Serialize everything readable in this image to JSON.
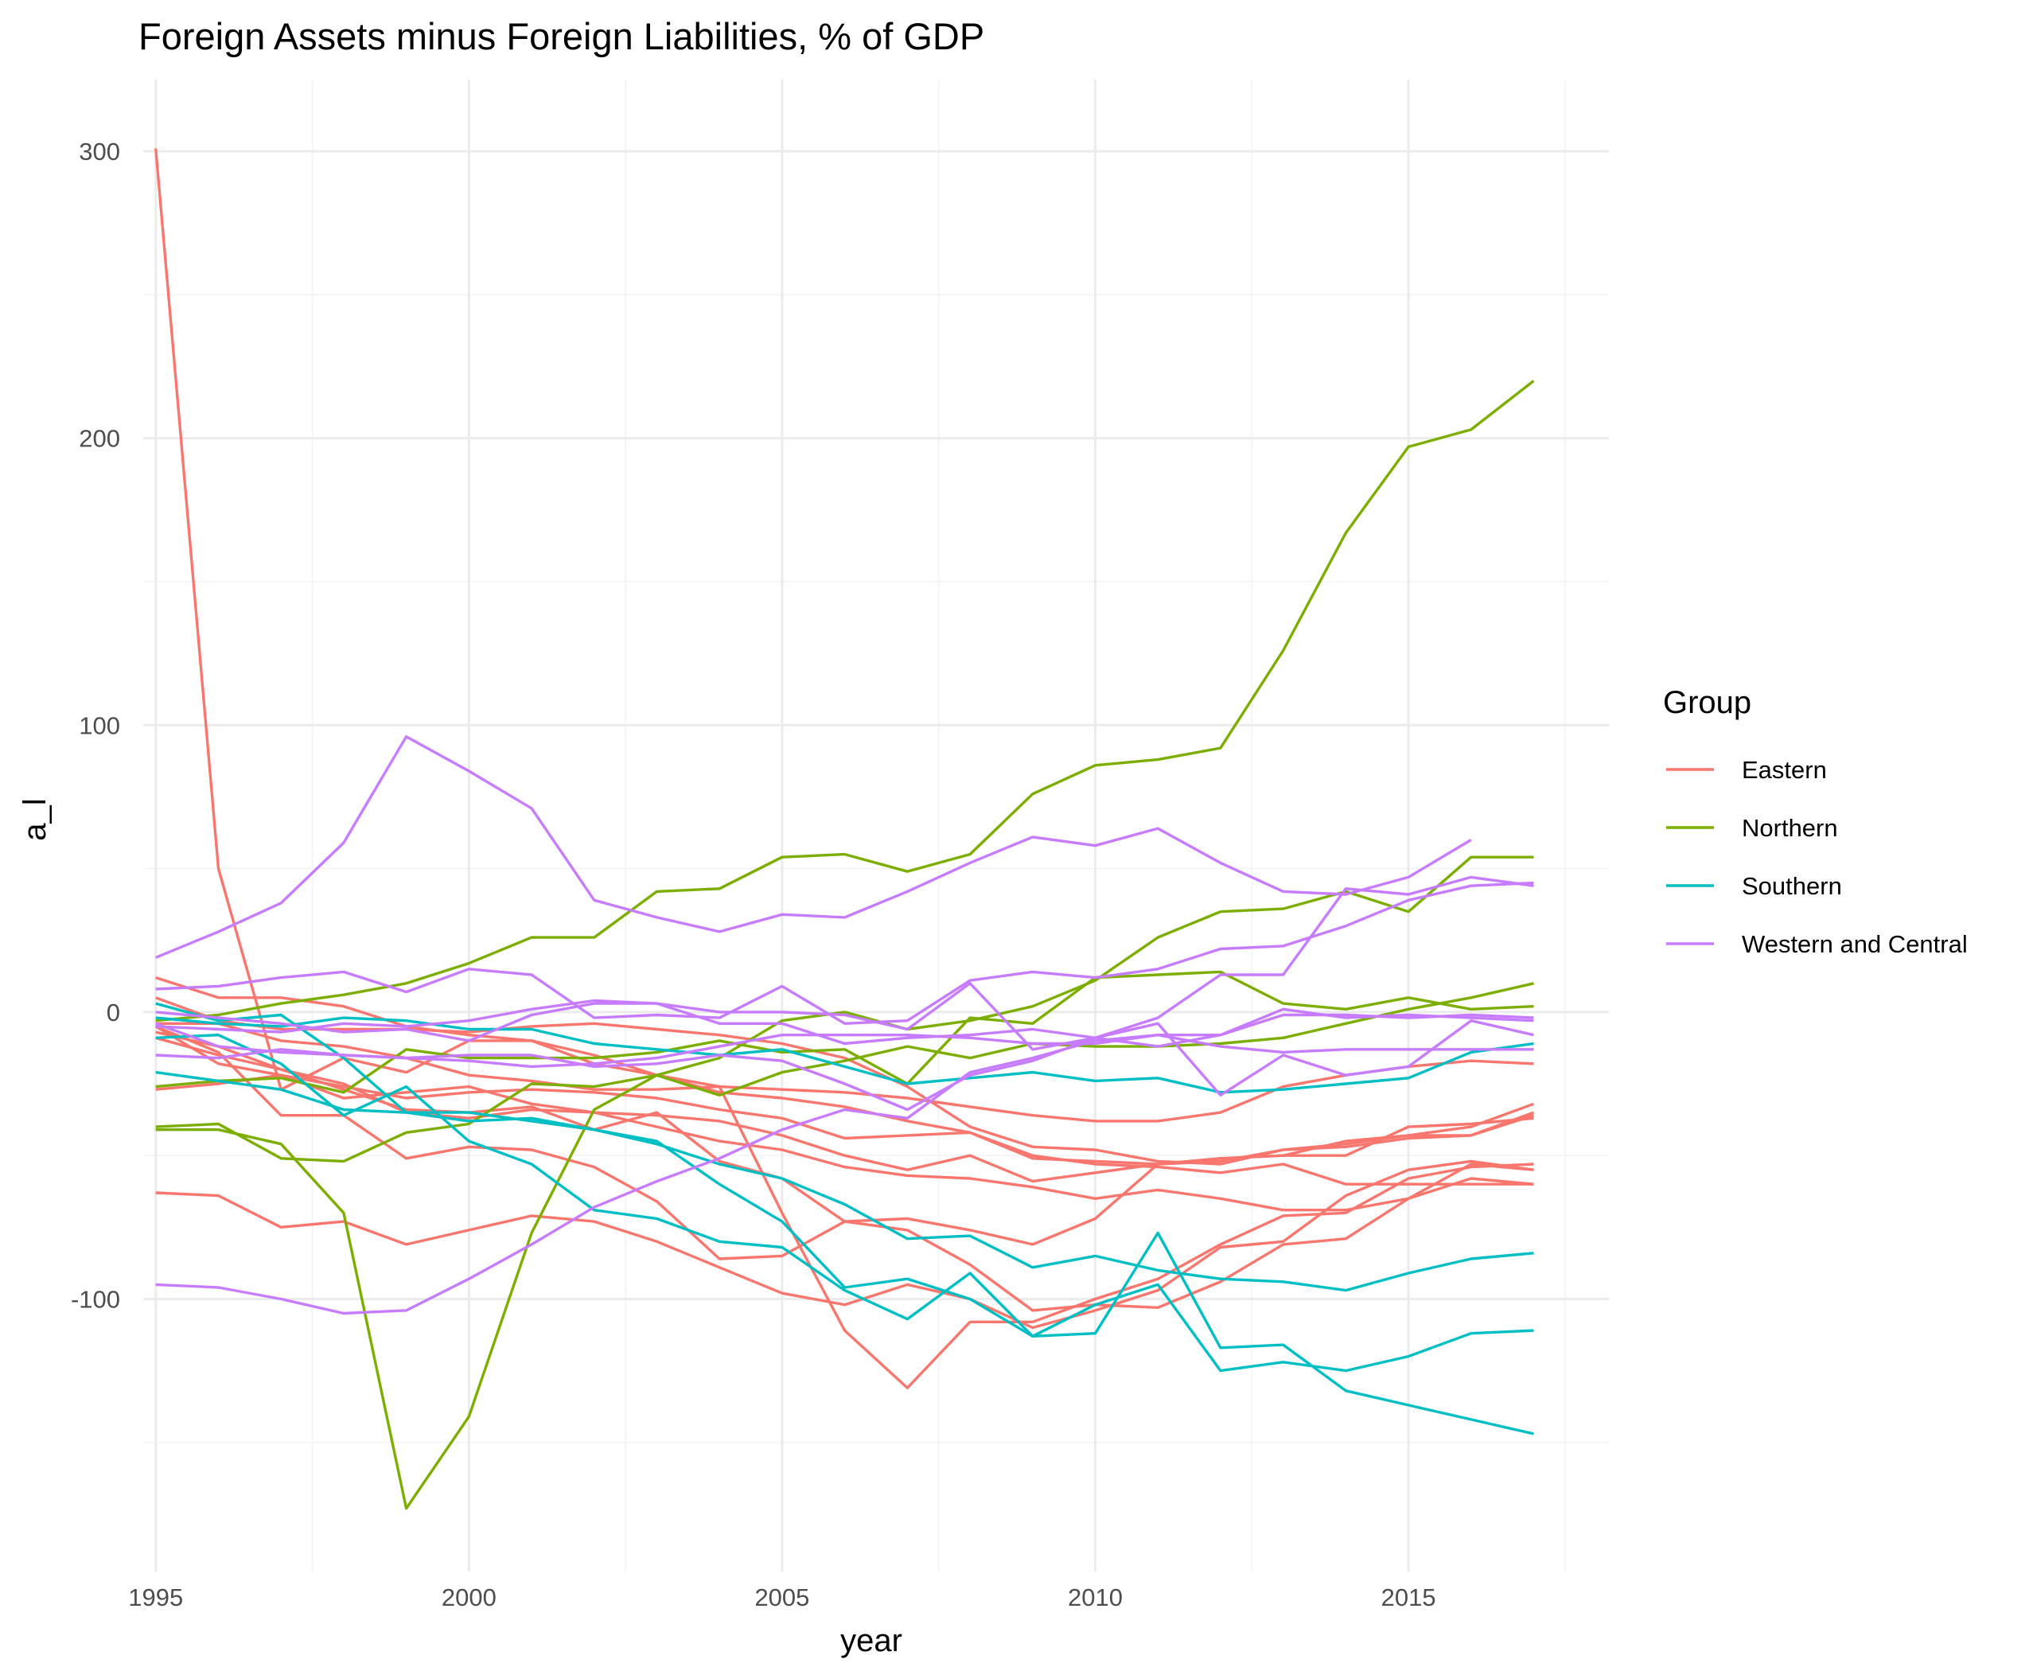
{
  "chart_data": {
    "type": "line",
    "title": "Foreign Assets minus Foreign Liabilities, % of GDP",
    "xlabel": "year",
    "ylabel": "a_l",
    "xlim": [
      1994.8,
      2018.2
    ],
    "ylim": [
      -195,
      325
    ],
    "x_ticks": [
      1995,
      2000,
      2005,
      2010,
      2015
    ],
    "x_tick_labels": [
      "1995",
      "2000",
      "2005",
      "2010",
      "2015"
    ],
    "y_ticks": [
      300,
      200,
      100,
      0,
      -100
    ],
    "y_tick_labels": [
      "300",
      "200",
      "100",
      "0",
      "-100"
    ],
    "legend": {
      "title": "Group",
      "placement": "right",
      "entries": [
        {
          "name": "Eastern",
          "color": "#F8766D"
        },
        {
          "name": "Northern",
          "color": "#7CAE00"
        },
        {
          "name": "Southern",
          "color": "#00BFC4"
        },
        {
          "name": "Western and Central",
          "color": "#C77CFF"
        }
      ]
    },
    "x": [
      1995,
      1996,
      1997,
      1998,
      1999,
      2000,
      2001,
      2002,
      2003,
      2004,
      2005,
      2006,
      2007,
      2008,
      2009,
      2010,
      2011,
      2012,
      2013,
      2014,
      2015,
      2016,
      2017
    ],
    "series": [
      {
        "group": "Eastern",
        "values": [
          301,
          50,
          -27,
          -16,
          -21,
          -10,
          -10,
          -15,
          -22,
          -26,
          -70,
          -111,
          -131,
          -108,
          -108,
          -100,
          -93,
          -81,
          -71,
          -70,
          -58,
          -54,
          -53
        ]
      },
      {
        "group": "Eastern",
        "values": [
          12,
          5,
          5,
          2,
          -5,
          -8,
          -10,
          -18,
          -22,
          -28,
          -30,
          -33,
          -38,
          -42,
          -50,
          -53,
          -54,
          -56,
          -53,
          -60,
          -60,
          -60,
          -60
        ]
      },
      {
        "group": "Eastern",
        "values": [
          5,
          -3,
          -6,
          -6,
          -6,
          -7,
          -5,
          -4,
          -6,
          -8,
          -11,
          -16,
          -26,
          -40,
          -47,
          -48,
          -52,
          -53,
          -48,
          -47,
          -44,
          -43,
          -36
        ]
      },
      {
        "group": "Eastern",
        "values": [
          -5,
          -14,
          -36,
          -36,
          -51,
          -47,
          -48,
          -54,
          -66,
          -86,
          -85,
          -73,
          -72,
          -76,
          -81,
          -72,
          -53,
          -51,
          -50,
          -45,
          -43,
          -40,
          -32
        ]
      },
      {
        "group": "Eastern",
        "values": [
          -63,
          -64,
          -75,
          -73,
          -81,
          -76,
          -71,
          -73,
          -80,
          -89,
          -98,
          -102,
          -95,
          -100,
          -110,
          -104,
          -97,
          -82,
          -80,
          -64,
          -55,
          -52,
          -55
        ]
      },
      {
        "group": "Eastern",
        "values": [
          -27,
          -25,
          -22,
          -26,
          -30,
          -28,
          -27,
          -28,
          -30,
          -34,
          -37,
          -44,
          -43,
          -42,
          -51,
          -52,
          -53,
          -51,
          -50,
          -50,
          -40,
          -39,
          -37
        ]
      },
      {
        "group": "Eastern",
        "values": [
          -9,
          -15,
          -20,
          -25,
          -35,
          -37,
          -34,
          -35,
          -36,
          -38,
          -43,
          -50,
          -55,
          -50,
          -59,
          -56,
          -53,
          -52,
          -48,
          -46,
          -43,
          -43,
          -35
        ]
      },
      {
        "group": "Eastern",
        "values": [
          -5,
          -18,
          -22,
          -30,
          -28,
          -26,
          -32,
          -35,
          -40,
          -45,
          -48,
          -54,
          -57,
          -58,
          -61,
          -65,
          -62,
          -65,
          -69,
          -69,
          -65,
          -58,
          -60
        ]
      },
      {
        "group": "Eastern",
        "values": [
          -7,
          -12,
          -20,
          -27,
          -34,
          -35,
          -33,
          -41,
          -35,
          -52,
          -58,
          -73,
          -76,
          -88,
          -104,
          -102,
          -103,
          -94,
          -81,
          -79,
          -65,
          -53,
          -55
        ]
      },
      {
        "group": "Eastern",
        "values": [
          -4,
          -4,
          -10,
          -12,
          -16,
          -22,
          -24,
          -27,
          -27,
          -26,
          -27,
          -28,
          -30,
          -33,
          -36,
          -38,
          -38,
          -35,
          -26,
          -22,
          -19,
          -17,
          -18
        ]
      },
      {
        "group": "Northern",
        "values": [
          -40,
          -39,
          -51,
          -52,
          -42,
          -39,
          -25,
          -26,
          -22,
          -29,
          -21,
          -17,
          -12,
          -16,
          -11,
          -12,
          -12,
          -11,
          -9,
          -4,
          1,
          5,
          10
        ]
      },
      {
        "group": "Northern",
        "values": [
          -41,
          -41,
          -46,
          -70,
          -173,
          -141,
          -77,
          -34,
          -22,
          -16,
          -3,
          0,
          -6,
          -3,
          2,
          11,
          26,
          35,
          36,
          42,
          35,
          54,
          54
        ]
      },
      {
        "group": "Northern",
        "values": [
          -26,
          -24,
          -23,
          -28,
          -13,
          -16,
          -16,
          -16,
          -14,
          -10,
          -14,
          -13,
          -25,
          -2,
          -4,
          12,
          13,
          14,
          3,
          1,
          5,
          1,
          2
        ]
      },
      {
        "group": "Northern",
        "values": [
          -3,
          -1,
          3,
          6,
          10,
          17,
          26,
          26,
          42,
          43,
          54,
          55,
          49,
          55,
          76,
          86,
          88,
          92,
          126,
          167,
          197,
          203,
          220
        ]
      },
      {
        "group": "Southern",
        "values": [
          -9,
          -8,
          -18,
          -36,
          -26,
          -45,
          -53,
          -69,
          -72,
          -80,
          -82,
          -97,
          -107,
          -91,
          -113,
          -112,
          -77,
          -117,
          -116,
          -132,
          -137,
          -142,
          -147
        ]
      },
      {
        "group": "Southern",
        "values": [
          -21,
          -24,
          -27,
          -34,
          -35,
          -35,
          -38,
          -41,
          -46,
          -53,
          -58,
          -67,
          -79,
          -78,
          -89,
          -85,
          -90,
          -93,
          -94,
          -97,
          -91,
          -86,
          -84
        ]
      },
      {
        "group": "Southern",
        "values": [
          3,
          -3,
          -1,
          -16,
          -35,
          -38,
          -37,
          -41,
          -45,
          -60,
          -73,
          -96,
          -93,
          -100,
          -113,
          -102,
          -95,
          -125,
          -122,
          -125,
          -120,
          -112,
          -111
        ]
      },
      {
        "group": "Southern",
        "values": [
          -2,
          -4,
          -5,
          -2,
          -3,
          -6,
          -6,
          -11,
          -13,
          -15,
          -13,
          -19,
          -25,
          -23,
          -21,
          -24,
          -23,
          -28,
          -27,
          -25,
          -23,
          -14,
          -11
        ]
      },
      {
        "group": "Western and Central",
        "values": [
          19,
          28,
          38,
          59,
          96,
          84,
          71,
          39,
          33,
          28,
          34,
          33,
          42,
          52,
          61,
          58,
          64,
          52,
          42,
          41,
          47,
          60,
          null
        ]
      },
      {
        "group": "Western and Central",
        "values": [
          8,
          9,
          12,
          14,
          7,
          15,
          13,
          -2,
          -1,
          -2,
          9,
          -4,
          -3,
          11,
          14,
          12,
          15,
          22,
          23,
          30,
          39,
          44,
          45
        ]
      },
      {
        "group": "Western and Central",
        "values": [
          0,
          -2,
          -4,
          -7,
          -6,
          -10,
          -1,
          3,
          3,
          -4,
          -4,
          -11,
          -9,
          -8,
          -6,
          -9,
          -12,
          -8,
          1,
          -2,
          -1,
          -2,
          -3
        ]
      },
      {
        "group": "Western and Central",
        "values": [
          -15,
          -16,
          -13,
          -15,
          -16,
          -15,
          -15,
          -19,
          -18,
          -15,
          -17,
          -25,
          -34,
          -22,
          -17,
          -9,
          -4,
          -29,
          -15,
          -22,
          -19,
          -3,
          -8
        ]
      },
      {
        "group": "Western and Central",
        "values": [
          -5,
          -6,
          -7,
          -4,
          -5,
          -3,
          1,
          4,
          3,
          0,
          0,
          -1,
          -6,
          10,
          -13,
          -9,
          -2,
          13,
          13,
          43,
          41,
          47,
          44
        ]
      },
      {
        "group": "Western and Central",
        "values": [
          -95,
          -96,
          -100,
          -105,
          -104,
          -93,
          -81,
          -68,
          -59,
          -51,
          -41,
          -34,
          -37,
          -21,
          -16,
          -10,
          -8,
          -8,
          -1,
          -1,
          -2,
          -1,
          -2
        ]
      },
      {
        "group": "Western and Central",
        "values": [
          -4,
          -12,
          -14,
          -15,
          -16,
          -17,
          -19,
          -18,
          -16,
          -12,
          -8,
          -8,
          -8,
          -9,
          -11,
          -11,
          -8,
          -12,
          -14,
          -13,
          -13,
          -13,
          -13
        ]
      }
    ]
  }
}
